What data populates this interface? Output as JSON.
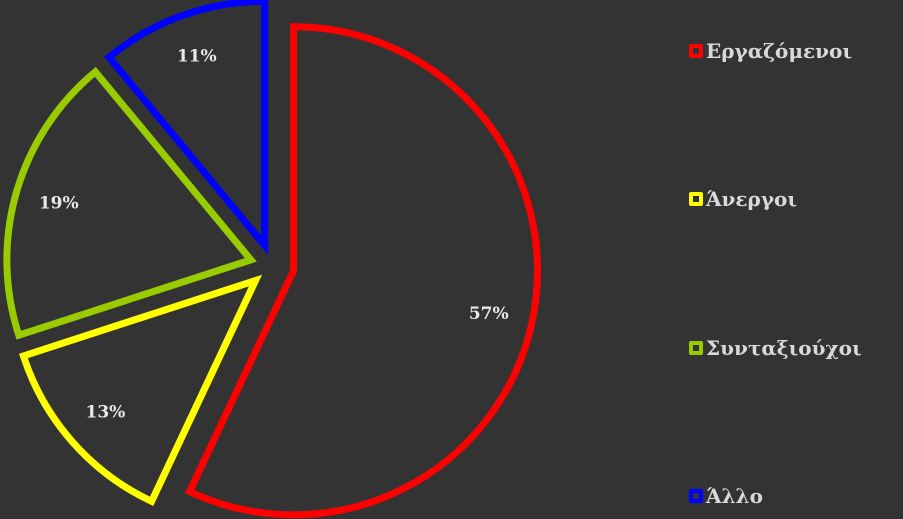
{
  "chart_data": {
    "type": "pie",
    "categories": [
      "Εργαζόμενοι",
      "Άνεργοι",
      "Συνταξιούχοι",
      "Άλλο"
    ],
    "values": [
      57,
      13,
      19,
      11
    ],
    "labels": [
      "57%",
      "13%",
      "19%",
      "11%"
    ],
    "colors": [
      "#ff0000",
      "#ffff00",
      "#99cc00",
      "#0000ff"
    ],
    "exploded": true,
    "legend_position": "right",
    "title": ""
  }
}
